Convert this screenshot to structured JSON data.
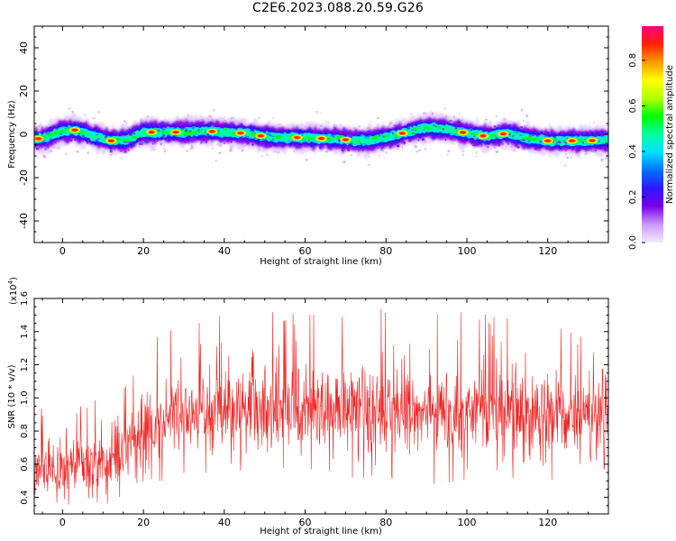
{
  "figure": {
    "title": "C2E6.2023.088.20.59.G26"
  },
  "chart_data": [
    {
      "type": "heatmap",
      "xlabel": "Height of straight line (km)",
      "ylabel": "Frequency (Hz)",
      "xlim": [
        -7,
        135
      ],
      "ylim": [
        -50,
        50
      ],
      "xticks": [
        0,
        20,
        40,
        60,
        80,
        100,
        120
      ],
      "yticks": [
        40,
        20,
        0,
        -20,
        -40
      ],
      "colorbar": {
        "label": "Normalized spectral amplitude",
        "range": [
          0,
          0.95
        ],
        "ticks": [
          0.0,
          0.2,
          0.4,
          0.6,
          0.8
        ],
        "colormap": [
          "#f4eaff",
          "#cc99ff",
          "#7a00e6",
          "#2b18ff",
          "#0070ff",
          "#00e0ff",
          "#00ffa0",
          "#00ff00",
          "#b4ff00",
          "#ffff00",
          "#ff9900",
          "#ff2200",
          "#ff0080"
        ]
      },
      "ridge": {
        "x": [
          -7,
          -5,
          0,
          3,
          8,
          12,
          16,
          20,
          25,
          30,
          35,
          40,
          45,
          50,
          55,
          60,
          65,
          70,
          75,
          80,
          85,
          90,
          95,
          100,
          105,
          110,
          115,
          120,
          125,
          130,
          135
        ],
        "y": [
          -2,
          -2,
          1.5,
          2,
          -1,
          -3,
          -2.5,
          1,
          1,
          1,
          1.5,
          1,
          0.5,
          -1,
          -1.5,
          -1.5,
          -2,
          -2.5,
          -3,
          -1.5,
          1,
          3,
          2.5,
          0.5,
          -1,
          0.5,
          -2,
          -3,
          -3,
          -3,
          -2.5
        ]
      },
      "hotspots_x": [
        -6,
        3,
        12,
        22,
        28,
        37,
        44,
        49,
        58,
        64,
        70,
        84,
        99,
        104,
        109,
        120,
        126,
        131
      ]
    },
    {
      "type": "line",
      "xlabel": "Height of straight line (km)",
      "ylabel": "SNR (10 * v/v)",
      "yscale_note": "(x10",
      "yscale_exp": "4",
      "yscale_close": ")",
      "xlim": [
        -7,
        135
      ],
      "ylim": [
        0.3,
        1.6
      ],
      "xticks": [
        0,
        20,
        40,
        60,
        80,
        100,
        120
      ],
      "yticks": [
        0.4,
        0.6,
        0.8,
        1.0,
        1.2,
        1.4,
        1.6
      ],
      "line_color": "#ee2222",
      "series": [
        {
          "x": [
            -7,
            0,
            5,
            10,
            15,
            18,
            20,
            25,
            30,
            40,
            50,
            60,
            70,
            80,
            90,
            100,
            110,
            120,
            130,
            135
          ],
          "mean": [
            0.6,
            0.58,
            0.6,
            0.6,
            0.65,
            0.75,
            0.82,
            0.88,
            0.9,
            0.92,
            0.95,
            0.95,
            0.92,
            0.93,
            0.92,
            0.92,
            0.93,
            0.9,
            0.9,
            0.9
          ],
          "spread": [
            0.16,
            0.16,
            0.17,
            0.18,
            0.18,
            0.2,
            0.2,
            0.2,
            0.21,
            0.22,
            0.23,
            0.23,
            0.23,
            0.23,
            0.23,
            0.23,
            0.23,
            0.22,
            0.22,
            0.21
          ],
          "min": [
            0.31,
            0.34,
            0.4,
            0.36,
            0.38,
            0.45,
            0.5,
            0.5,
            0.55,
            0.55,
            0.58,
            0.58,
            0.52,
            0.52,
            0.48,
            0.5,
            0.52,
            0.5,
            0.55,
            0.58
          ],
          "max": [
            0.95,
            0.9,
            0.96,
            1.0,
            1.05,
            1.15,
            1.3,
            1.4,
            1.42,
            1.5,
            1.52,
            1.5,
            1.5,
            1.6,
            1.5,
            1.52,
            1.48,
            1.45,
            1.35,
            1.1
          ]
        }
      ]
    }
  ]
}
